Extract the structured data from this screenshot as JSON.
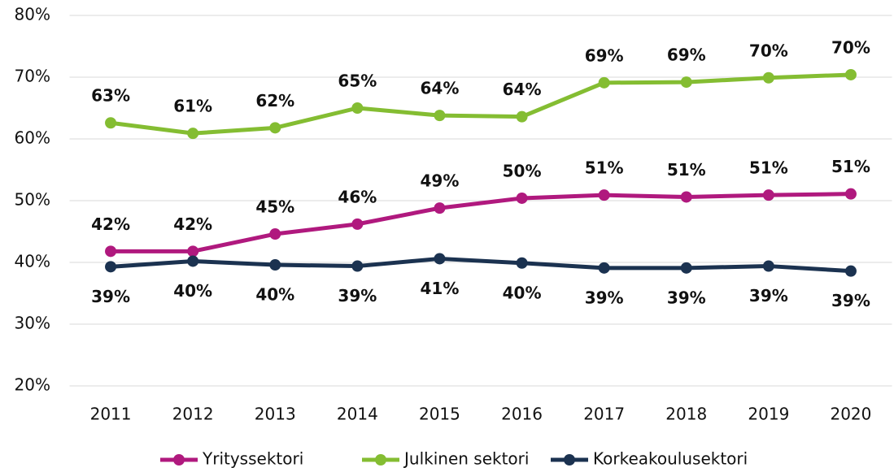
{
  "chart_data": {
    "type": "line",
    "categories": [
      "2011",
      "2012",
      "2013",
      "2014",
      "2015",
      "2016",
      "2017",
      "2018",
      "2019",
      "2020"
    ],
    "series": [
      {
        "name": "Yrityssektori",
        "color": "#b0197e",
        "values": [
          41.8,
          41.8,
          44.6,
          46.2,
          48.8,
          50.4,
          50.9,
          50.6,
          50.9,
          51.1
        ],
        "value_labels": [
          "42%",
          "42%",
          "45%",
          "46%",
          "49%",
          "50%",
          "51%",
          "51%",
          "51%",
          "51%"
        ]
      },
      {
        "name": "Julkinen sektori",
        "color": "#84bd32",
        "values": [
          62.6,
          60.9,
          61.8,
          65.0,
          63.8,
          63.6,
          69.1,
          69.2,
          69.9,
          70.4
        ],
        "value_labels": [
          "63%",
          "61%",
          "62%",
          "65%",
          "64%",
          "64%",
          "69%",
          "69%",
          "70%",
          "70%"
        ]
      },
      {
        "name": "Korkeakoulusektori",
        "color": "#1b3250",
        "values": [
          39.3,
          40.2,
          39.6,
          39.4,
          40.6,
          39.9,
          39.1,
          39.1,
          39.4,
          38.6
        ],
        "value_labels": [
          "39%",
          "40%",
          "40%",
          "39%",
          "41%",
          "40%",
          "39%",
          "39%",
          "39%",
          "39%"
        ]
      }
    ],
    "ylim": [
      20,
      80
    ],
    "yticks": [
      {
        "value": 20,
        "label": "20%"
      },
      {
        "value": 30,
        "label": "30%"
      },
      {
        "value": 40,
        "label": "40%"
      },
      {
        "value": 50,
        "label": "50%"
      },
      {
        "value": 60,
        "label": "60%"
      },
      {
        "value": 70,
        "label": "70%"
      },
      {
        "value": 80,
        "label": "80%"
      }
    ],
    "grid": true,
    "legend": "bottom"
  }
}
